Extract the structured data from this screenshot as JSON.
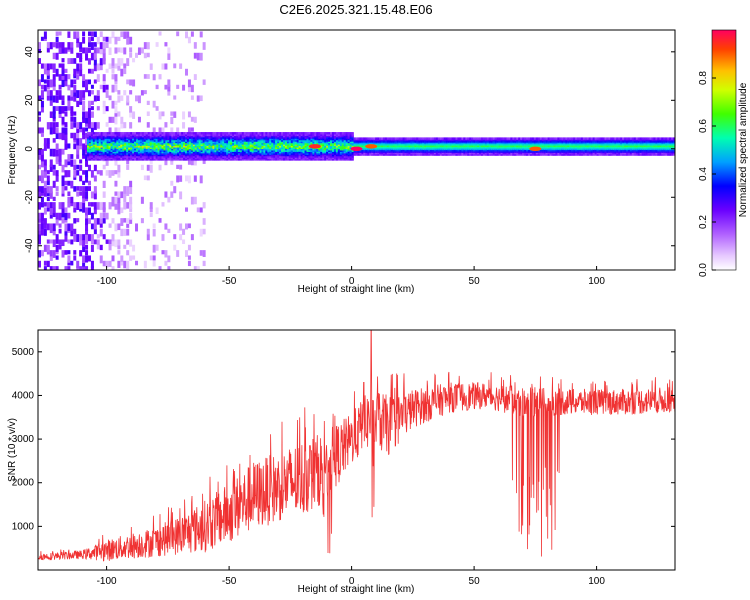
{
  "title": "C2E6.2025.321.15.48.E06",
  "colors": {
    "snr_line": "#f03232",
    "axis": "#000000",
    "background": "#ffffff"
  },
  "chart_data": [
    {
      "type": "heatmap",
      "xlabel": "Height of straight line (km)",
      "ylabel": "Frequency (Hz)",
      "xlim": [
        -128,
        132
      ],
      "ylim": [
        -50,
        49
      ],
      "xticks": [
        -100,
        -50,
        0,
        50,
        100
      ],
      "yticks": [
        -40,
        -20,
        0,
        20,
        40
      ],
      "colorbar": {
        "label": "Normalized spectral amplitude",
        "range": [
          0.0,
          1.0
        ],
        "ticks": [
          0.0,
          0.2,
          0.4,
          0.6,
          0.8
        ],
        "tick_labels": [
          "0.0",
          "0.2",
          "0.4",
          "0.6",
          "0.8"
        ],
        "colormap": "rainbow"
      },
      "features": {
        "sparse_noise_region_km": [
          -128,
          -70
        ],
        "band_start_km": -108,
        "band_center_hz": 1,
        "band_halfwidth_hz_near": 4,
        "band_halfwidth_hz_far": 2,
        "peaks": [
          {
            "x_km": -15,
            "f_hz": 1,
            "amp": 0.95
          },
          {
            "x_km": 2,
            "f_hz": 0,
            "amp": 1.0
          },
          {
            "x_km": 8,
            "f_hz": 1,
            "amp": 0.9
          },
          {
            "x_km": 75,
            "f_hz": 0,
            "amp": 0.9
          }
        ]
      }
    },
    {
      "type": "line",
      "xlabel": "Height of straight line (km)",
      "ylabel": "SNR (10 * v/v)",
      "xlim": [
        -128,
        132
      ],
      "ylim": [
        0,
        5500
      ],
      "xticks": [
        -100,
        -50,
        0,
        50,
        100
      ],
      "yticks": [
        1000,
        2000,
        3000,
        4000,
        5000
      ],
      "envelope": [
        {
          "x": -128,
          "mean": 300,
          "spread": 80
        },
        {
          "x": -110,
          "mean": 350,
          "spread": 100
        },
        {
          "x": -100,
          "mean": 450,
          "spread": 250
        },
        {
          "x": -90,
          "mean": 550,
          "spread": 300
        },
        {
          "x": -80,
          "mean": 650,
          "spread": 350
        },
        {
          "x": -70,
          "mean": 800,
          "spread": 450
        },
        {
          "x": -60,
          "mean": 1000,
          "spread": 600
        },
        {
          "x": -50,
          "mean": 1300,
          "spread": 700
        },
        {
          "x": -40,
          "mean": 1700,
          "spread": 800
        },
        {
          "x": -30,
          "mean": 1900,
          "spread": 800
        },
        {
          "x": -20,
          "mean": 2100,
          "spread": 900
        },
        {
          "x": -10,
          "mean": 2400,
          "spread": 800
        },
        {
          "x": 0,
          "mean": 3000,
          "spread": 600
        },
        {
          "x": 8,
          "mean": 3500,
          "spread": 700
        },
        {
          "x": 15,
          "mean": 3300,
          "spread": 700
        },
        {
          "x": 25,
          "mean": 3700,
          "spread": 450
        },
        {
          "x": 40,
          "mean": 3950,
          "spread": 350
        },
        {
          "x": 55,
          "mean": 4000,
          "spread": 300
        },
        {
          "x": 70,
          "mean": 3850,
          "spread": 350
        },
        {
          "x": 90,
          "mean": 3850,
          "spread": 300
        },
        {
          "x": 110,
          "mean": 3850,
          "spread": 300
        },
        {
          "x": 132,
          "mean": 3900,
          "spread": 300
        }
      ],
      "spikes": [
        {
          "x": 8,
          "y": 5500
        },
        {
          "x": 5,
          "y": 4300
        },
        {
          "x": -17,
          "y": 2850
        }
      ],
      "dips": [
        {
          "x_range": [
            65,
            85
          ],
          "min_y": 300
        },
        {
          "x_range": [
            8,
            10
          ],
          "min_y": 800
        },
        {
          "x_range": [
            -12,
            -8
          ],
          "min_y": 300
        }
      ]
    }
  ]
}
